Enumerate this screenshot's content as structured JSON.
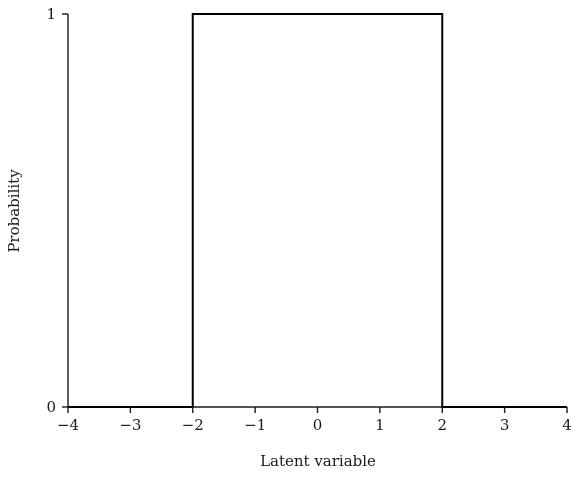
{
  "chart_data": {
    "type": "line",
    "xlabel": "Latent variable",
    "ylabel": "Probability",
    "xlim": [
      -4,
      4
    ],
    "ylim": [
      0,
      1
    ],
    "x_ticks": [
      -4,
      -3,
      -2,
      -1,
      0,
      1,
      2,
      3,
      4
    ],
    "x_tick_labels": [
      "−4",
      "−3",
      "−2",
      "−1",
      "0",
      "1",
      "2",
      "3",
      "4"
    ],
    "y_ticks": [
      0,
      1
    ],
    "y_tick_labels": [
      "0",
      "1"
    ],
    "grid": false,
    "series": [
      {
        "x": [
          -4,
          -2,
          -2,
          2,
          2,
          4
        ],
        "y": [
          0,
          0,
          1,
          1,
          0,
          0
        ],
        "color": "#000000"
      }
    ]
  }
}
